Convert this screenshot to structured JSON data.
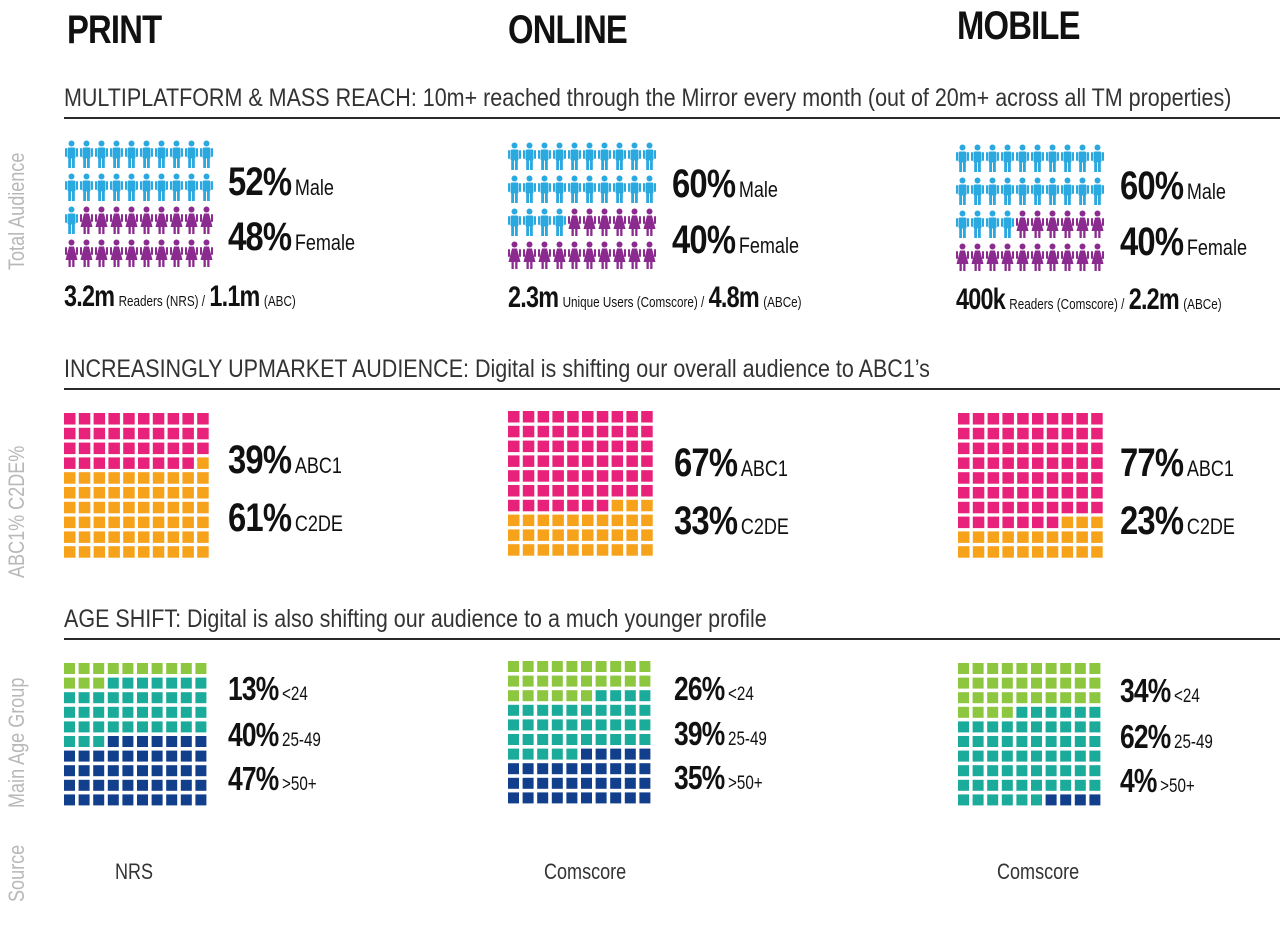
{
  "platforms": [
    "PRINT",
    "ONLINE",
    "MOBILE"
  ],
  "sections": {
    "reach": "MULTIPLATFORM & MASS REACH: 10m+ reached through the Mirror every month (out of 20m+ across all TM properties)",
    "upmarket": "INCREASINGLY UPMARKET AUDIENCE: Digital is shifting our overall audience to ABC1’s",
    "age": "AGE SHIFT: Digital is also shifting our audience to a much younger profile"
  },
  "row_labels": {
    "total": "Total Audience",
    "abc": "ABC1% C2DE%",
    "age": "Main Age  Group",
    "source": "Source"
  },
  "colors": {
    "male": "#2aa8e0",
    "female": "#8b2a8f",
    "abc1": "#e8217a",
    "c2de": "#f7a21b",
    "under24": "#8dc63f",
    "age25_49": "#1aab9b",
    "over50": "#123f8c"
  },
  "columns": [
    {
      "gender": {
        "male_pct": "52%",
        "male_label": "Male",
        "female_pct": "48%",
        "female_label": "Female"
      },
      "reach": {
        "n1": "3.2m",
        "s1": "Readers (NRS) /",
        "n2": "1.1m",
        "s2": "(ABC)"
      },
      "abc": {
        "abc1_pct": "39%",
        "abc1_label": "ABC1",
        "c2de_pct": "61%",
        "c2de_label": "C2DE"
      },
      "age": {
        "a_pct": "13%",
        "a_label": "<24",
        "b_pct": "40%",
        "b_label": "25-49",
        "c_pct": "47%",
        "c_label": ">50+"
      },
      "source": "NRS"
    },
    {
      "gender": {
        "male_pct": "60%",
        "male_label": "Male",
        "female_pct": "40%",
        "female_label": "Female"
      },
      "reach": {
        "n1": "2.3m",
        "s1": "Unique Users (Comscore) /",
        "n2": "4.8m",
        "s2": "(ABCe)"
      },
      "abc": {
        "abc1_pct": "67%",
        "abc1_label": "ABC1",
        "c2de_pct": "33%",
        "c2de_label": "C2DE"
      },
      "age": {
        "a_pct": "26%",
        "a_label": "<24",
        "b_pct": "39%",
        "b_label": "25-49",
        "c_pct": "35%",
        "c_label": ">50+"
      },
      "source": "Comscore"
    },
    {
      "gender": {
        "male_pct": "60%",
        "male_label": "Male",
        "female_pct": "40%",
        "female_label": "Female"
      },
      "reach": {
        "n1": "400k",
        "s1": "Readers (Comscore) /",
        "n2": "2.2m",
        "s2": "(ABCe)"
      },
      "abc": {
        "abc1_pct": "77%",
        "abc1_label": "ABC1",
        "c2de_pct": "23%",
        "c2de_label": "C2DE"
      },
      "age": {
        "a_pct": "34%",
        "a_label": "<24",
        "b_pct": "62%",
        "b_label": "25-49",
        "c_pct": "4%",
        "c_label": ">50+"
      },
      "source": "Comscore"
    }
  ],
  "chart_data": [
    {
      "type": "pictogram",
      "title": "Total Audience",
      "categories": [
        "Male",
        "Female"
      ],
      "series": [
        {
          "name": "PRINT",
          "values": [
            52,
            48
          ]
        },
        {
          "name": "ONLINE",
          "values": [
            60,
            40
          ]
        },
        {
          "name": "MOBILE",
          "values": [
            60,
            40
          ]
        }
      ]
    },
    {
      "type": "waffle",
      "title": "ABC1% C2DE%",
      "categories": [
        "ABC1",
        "C2DE"
      ],
      "series": [
        {
          "name": "PRINT",
          "values": [
            39,
            61
          ]
        },
        {
          "name": "ONLINE",
          "values": [
            67,
            33
          ]
        },
        {
          "name": "MOBILE",
          "values": [
            77,
            23
          ]
        }
      ]
    },
    {
      "type": "waffle",
      "title": "Main Age  Group",
      "categories": [
        "<24",
        "25-49",
        ">50+"
      ],
      "series": [
        {
          "name": "PRINT",
          "values": [
            13,
            40,
            47
          ]
        },
        {
          "name": "ONLINE",
          "values": [
            26,
            39,
            35
          ]
        },
        {
          "name": "MOBILE",
          "values": [
            34,
            62,
            4
          ]
        }
      ]
    }
  ]
}
